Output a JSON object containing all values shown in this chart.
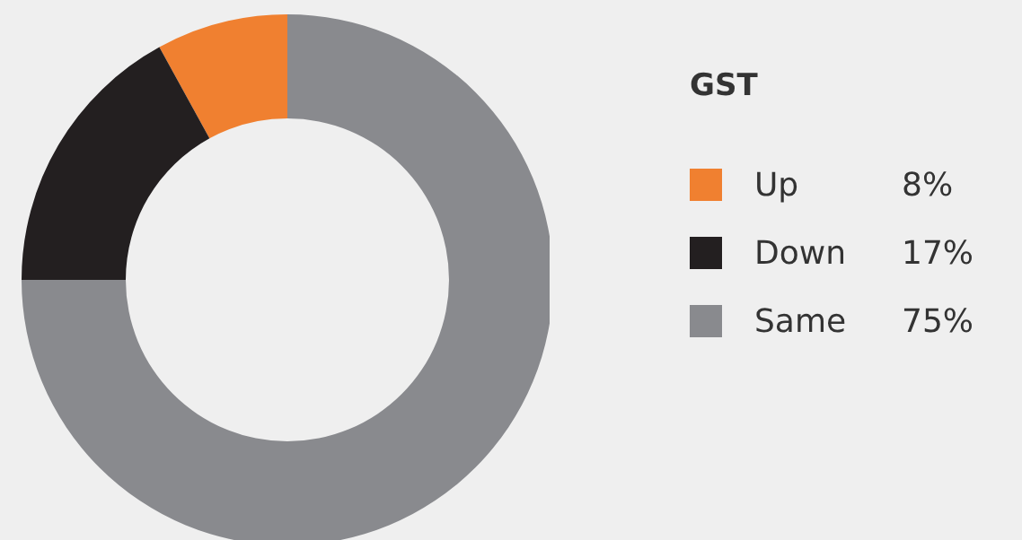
{
  "chart_data": {
    "type": "donut",
    "legend_title": "GST",
    "categories": [
      "Up",
      "Down",
      "Same"
    ],
    "values": [
      8,
      17,
      75
    ],
    "colors": [
      "#f08030",
      "#231f20",
      "#898a8e"
    ],
    "value_labels": [
      "8%",
      "17%",
      "75%"
    ],
    "legend": "right"
  }
}
